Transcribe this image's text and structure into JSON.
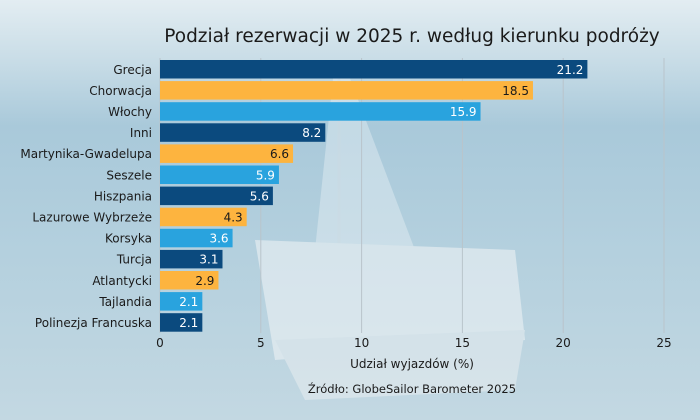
{
  "chart_data": {
    "type": "bar",
    "orientation": "horizontal",
    "title": "Podział rezerwacji w 2025 r. według kierunku podróży",
    "xlabel": "Udział wyjazdów (%)",
    "ylabel": "",
    "source": "Źródło: GlobeSailor Barometer 2025",
    "xlim": [
      0,
      25
    ],
    "xticks": [
      0,
      5,
      10,
      15,
      20,
      25
    ],
    "grid": true,
    "categories": [
      "Grecja",
      "Chorwacja",
      "Włochy",
      "Inni",
      "Martynika-Gwadelupa",
      "Seszele",
      "Hiszpania",
      "Lazurowe Wybrzeże",
      "Korsyka",
      "Turcja",
      "Atlantycki",
      "Tajlandia",
      "Polinezja Francuska"
    ],
    "values": [
      21.2,
      18.5,
      15.9,
      8.2,
      6.6,
      5.9,
      5.6,
      4.3,
      3.6,
      3.1,
      2.9,
      2.1,
      2.1
    ],
    "value_labels": [
      "21.2",
      "18.5",
      "15.9",
      "8.2",
      "6.6",
      "5.9",
      "5.6",
      "4.3",
      "3.6",
      "3.1",
      "2.9",
      "2.1",
      "2.1"
    ],
    "colors": [
      "#0b4a7e",
      "#fdb43f",
      "#29a3de"
    ]
  }
}
